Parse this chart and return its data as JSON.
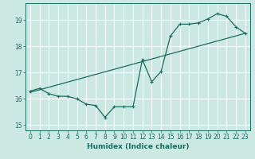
{
  "title": "",
  "xlabel": "Humidex (Indice chaleur)",
  "ylabel": "",
  "bg_color": "#cce8e2",
  "line_color": "#1a6b60",
  "grid_color": "#ffffff",
  "xlim": [
    -0.5,
    23.5
  ],
  "ylim": [
    14.8,
    19.65
  ],
  "xticks": [
    0,
    1,
    2,
    3,
    4,
    5,
    6,
    7,
    8,
    9,
    10,
    11,
    12,
    13,
    14,
    15,
    16,
    17,
    18,
    19,
    20,
    21,
    22,
    23
  ],
  "yticks": [
    15,
    16,
    17,
    18,
    19
  ],
  "line1_x": [
    0,
    1,
    2,
    3,
    4,
    5,
    6,
    7,
    8,
    9,
    10,
    11,
    12,
    13,
    14,
    15,
    16,
    17,
    18,
    19,
    20,
    21,
    22,
    23
  ],
  "line1_y": [
    16.3,
    16.4,
    16.2,
    16.1,
    16.1,
    16.0,
    15.8,
    15.75,
    15.3,
    15.7,
    15.7,
    15.7,
    17.5,
    16.65,
    17.05,
    18.4,
    18.85,
    18.85,
    18.9,
    19.05,
    19.25,
    19.15,
    18.75,
    18.5
  ],
  "line2_x": [
    0,
    23
  ],
  "line2_y": [
    16.25,
    18.5
  ],
  "xlabel_fontsize": 6.5,
  "tick_fontsize": 5.5
}
